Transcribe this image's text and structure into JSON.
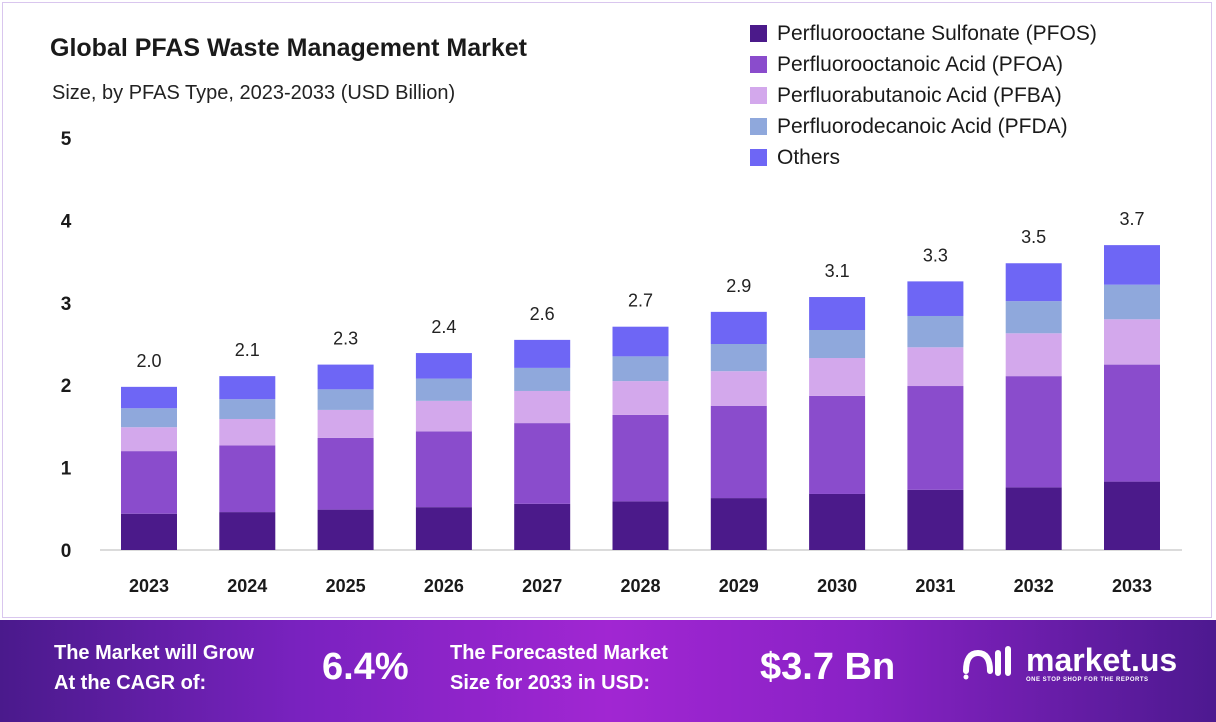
{
  "chart_data": {
    "type": "bar",
    "stacked": true,
    "title": "Global PFAS Waste Management Market",
    "subtitle": "Size, by PFAS Type, 2023-2033 (USD Billion)",
    "xlabel": "",
    "ylabel": "",
    "ylim": [
      0,
      5
    ],
    "yticks": [
      "0",
      "1",
      "2",
      "3",
      "4",
      "5"
    ],
    "grid": false,
    "legend_position": "top-right",
    "categories": [
      "2023",
      "2024",
      "2025",
      "2026",
      "2027",
      "2028",
      "2029",
      "2030",
      "2031",
      "2032",
      "2033"
    ],
    "totals_labels": [
      "2.0",
      "2.1",
      "2.3",
      "2.4",
      "2.6",
      "2.7",
      "2.9",
      "3.1",
      "3.3",
      "3.5",
      "3.7"
    ],
    "series": [
      {
        "name": "Perfluorooctane Sulfonate (PFOS)",
        "color": "#4b1a8a",
        "values": [
          0.44,
          0.46,
          0.49,
          0.52,
          0.56,
          0.59,
          0.63,
          0.68,
          0.73,
          0.76,
          0.83
        ]
      },
      {
        "name": "Perfluorooctanoic Acid (PFOA)",
        "color": "#8a4ccc",
        "values": [
          0.76,
          0.81,
          0.87,
          0.92,
          0.98,
          1.05,
          1.12,
          1.19,
          1.26,
          1.35,
          1.42
        ]
      },
      {
        "name": "Perfluorabutanoic Acid (PFBA)",
        "color": "#d3a8ec",
        "values": [
          0.29,
          0.32,
          0.34,
          0.37,
          0.39,
          0.41,
          0.42,
          0.46,
          0.47,
          0.52,
          0.55
        ]
      },
      {
        "name": "Perfluorodecanoic Acid (PFDA)",
        "color": "#8fa8dc",
        "values": [
          0.23,
          0.24,
          0.25,
          0.27,
          0.28,
          0.3,
          0.33,
          0.34,
          0.38,
          0.39,
          0.42
        ]
      },
      {
        "name": "Others",
        "color": "#6e66f5",
        "values": [
          0.26,
          0.28,
          0.3,
          0.31,
          0.34,
          0.36,
          0.39,
          0.4,
          0.42,
          0.46,
          0.48
        ]
      }
    ]
  },
  "footer": {
    "cagr_text_1": "The Market will Grow",
    "cagr_text_2": "At the CAGR of:",
    "cagr_value": "6.4%",
    "forecast_text_1": "The Forecasted Market",
    "forecast_text_2": "Size for 2033 in USD:",
    "forecast_value": "$3.7 Bn",
    "logo_name": "market.us",
    "logo_tagline": "ONE STOP SHOP FOR THE REPORTS"
  }
}
